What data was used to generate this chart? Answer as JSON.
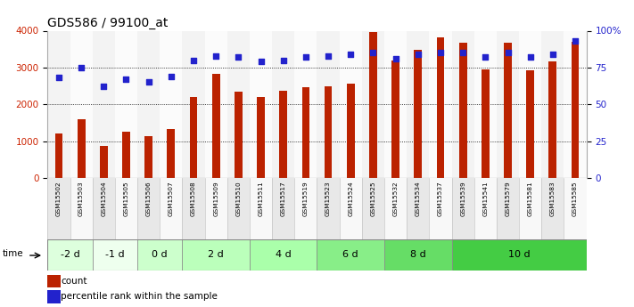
{
  "title": "GDS586 / 99100_at",
  "samples": [
    "GSM15502",
    "GSM15503",
    "GSM15504",
    "GSM15505",
    "GSM15506",
    "GSM15507",
    "GSM15508",
    "GSM15509",
    "GSM15510",
    "GSM15511",
    "GSM15517",
    "GSM15519",
    "GSM15523",
    "GSM15524",
    "GSM15525",
    "GSM15532",
    "GSM15534",
    "GSM15537",
    "GSM15539",
    "GSM15541",
    "GSM15579",
    "GSM15581",
    "GSM15583",
    "GSM15585"
  ],
  "counts": [
    1220,
    1600,
    870,
    1250,
    1140,
    1320,
    2200,
    2820,
    2340,
    2200,
    2360,
    2460,
    2500,
    2560,
    3960,
    3200,
    3480,
    3820,
    3680,
    2960,
    3680,
    2920,
    3160,
    3700
  ],
  "percentiles": [
    68,
    75,
    62,
    67,
    65,
    69,
    80,
    83,
    82,
    79,
    80,
    82,
    83,
    84,
    85,
    81,
    84,
    85,
    85,
    82,
    85,
    82,
    84,
    93
  ],
  "groups": [
    {
      "label": "-2 d",
      "start": 0,
      "end": 2,
      "color": "#ddffdd"
    },
    {
      "label": "-1 d",
      "start": 2,
      "end": 4,
      "color": "#eeffee"
    },
    {
      "label": "0 d",
      "start": 4,
      "end": 6,
      "color": "#ccffcc"
    },
    {
      "label": "2 d",
      "start": 6,
      "end": 9,
      "color": "#bbffbb"
    },
    {
      "label": "4 d",
      "start": 9,
      "end": 12,
      "color": "#aaffaa"
    },
    {
      "label": "6 d",
      "start": 12,
      "end": 15,
      "color": "#88ee88"
    },
    {
      "label": "8 d",
      "start": 15,
      "end": 18,
      "color": "#66dd66"
    },
    {
      "label": "10 d",
      "start": 18,
      "end": 24,
      "color": "#44cc44"
    }
  ],
  "sample_col_colors": [
    "#e8e8e8",
    "#f8f8f8",
    "#e8e8e8",
    "#f8f8f8",
    "#e8e8e8",
    "#f8f8f8",
    "#e8e8e8",
    "#f8f8f8",
    "#e8e8e8",
    "#f8f8f8",
    "#e8e8e8",
    "#f8f8f8",
    "#e8e8e8",
    "#f8f8f8",
    "#e8e8e8",
    "#f8f8f8",
    "#e8e8e8",
    "#f8f8f8",
    "#e8e8e8",
    "#f8f8f8",
    "#e8e8e8",
    "#f8f8f8",
    "#e8e8e8",
    "#f8f8f8"
  ],
  "bar_color": "#bb2200",
  "dot_color": "#2222cc",
  "left_ylim": [
    0,
    4000
  ],
  "right_ylim": [
    0,
    100
  ],
  "left_yticks": [
    0,
    1000,
    2000,
    3000,
    4000
  ],
  "right_yticks": [
    0,
    25,
    50,
    75,
    100
  ],
  "right_yticklabels": [
    "0",
    "25",
    "50",
    "75",
    "100%"
  ],
  "grid_values": [
    1000,
    2000,
    3000
  ],
  "background_color": "#ffffff",
  "title_fontsize": 10,
  "axis_label_color_left": "#cc2200",
  "axis_label_color_right": "#2222cc"
}
